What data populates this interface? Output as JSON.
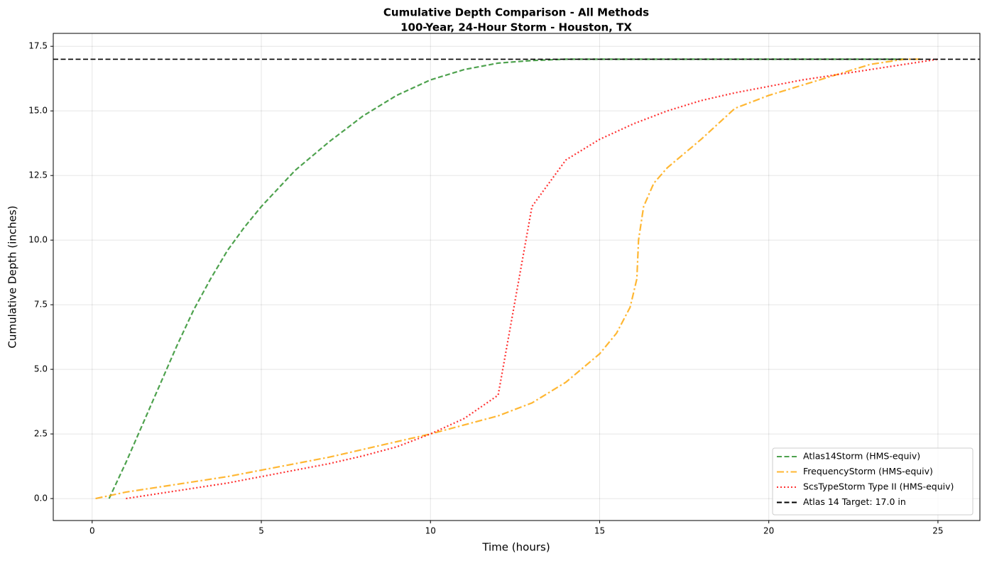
{
  "chart_data": {
    "type": "line",
    "title": "Cumulative Depth Comparison - All Methods",
    "subtitle": "100-Year, 24-Hour Storm - Houston, TX",
    "xlabel": "Time (hours)",
    "ylabel": "Cumulative Depth (inches)",
    "xlim": [
      -1.15,
      26.24
    ],
    "ylim": [
      -0.85,
      18.0
    ],
    "xticks": [
      0,
      5,
      10,
      15,
      20,
      25
    ],
    "yticks": [
      {
        "value": 0,
        "label": "0.0"
      },
      2.5,
      {
        "value": 5,
        "label": "5.0"
      },
      7.5,
      {
        "value": 10,
        "label": "10.0"
      },
      12.5,
      {
        "value": 15,
        "label": "15.0"
      },
      17.5
    ],
    "grid": true,
    "legend": "lower right",
    "series": [
      {
        "name": "Atlas14Storm (HMS-equiv)",
        "color": "#228b22",
        "linestyle": "dashed",
        "x": [
          0.5,
          1,
          1.5,
          2,
          2.5,
          3,
          3.5,
          4,
          4.5,
          5,
          6,
          7,
          8,
          9,
          10,
          11,
          12,
          13,
          14,
          15,
          16,
          17,
          18,
          19,
          20,
          21,
          22,
          23,
          24
        ],
        "values": [
          0,
          1.4,
          2.9,
          4.4,
          5.9,
          7.3,
          8.5,
          9.6,
          10.5,
          11.3,
          12.7,
          13.8,
          14.8,
          15.6,
          16.2,
          16.6,
          16.85,
          16.95,
          17.0,
          17.0,
          17.0,
          17.0,
          17.0,
          17.0,
          17.0,
          17.0,
          17.0,
          17.0,
          17.0
        ]
      },
      {
        "name": "FrequencyStorm (HMS-equiv)",
        "color": "#ffa500",
        "linestyle": "dashdot",
        "x": [
          0.1,
          1,
          2,
          3,
          4,
          5,
          6,
          7,
          8,
          9,
          10,
          11,
          12,
          13,
          14,
          15,
          15.5,
          15.9,
          16.1,
          16.15,
          16.3,
          16.6,
          17,
          18,
          19,
          20,
          21,
          22,
          23,
          24,
          24.5
        ],
        "values": [
          0,
          0.25,
          0.45,
          0.65,
          0.85,
          1.1,
          1.35,
          1.6,
          1.9,
          2.2,
          2.5,
          2.85,
          3.2,
          3.7,
          4.5,
          5.6,
          6.4,
          7.4,
          8.5,
          10.0,
          11.3,
          12.2,
          12.8,
          13.9,
          15.1,
          15.6,
          16.0,
          16.4,
          16.8,
          17.0,
          17.0
        ]
      },
      {
        "name": "ScsTypeStorm Type II (HMS-equiv)",
        "color": "#ff0000",
        "linestyle": "dotted",
        "x": [
          1,
          2,
          3,
          4,
          5,
          6,
          7,
          8,
          9,
          10,
          11,
          12,
          13,
          14,
          15,
          16,
          17,
          18,
          19,
          20,
          21,
          22,
          23,
          24,
          25
        ],
        "values": [
          0,
          0.2,
          0.4,
          0.6,
          0.85,
          1.1,
          1.35,
          1.65,
          2.0,
          2.5,
          3.1,
          4.0,
          11.3,
          13.1,
          13.9,
          14.5,
          15.0,
          15.4,
          15.7,
          15.95,
          16.2,
          16.4,
          16.6,
          16.8,
          17.0
        ]
      }
    ],
    "target": {
      "value": 17.0,
      "label": "Atlas 14 Target: 17.0 in",
      "color": "#000000",
      "linestyle": "dashed"
    }
  }
}
